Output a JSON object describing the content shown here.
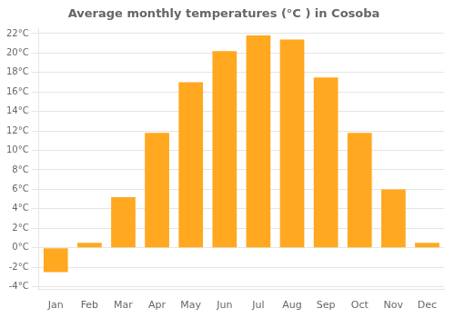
{
  "chart_data": {
    "type": "bar",
    "title": "Average monthly temperatures (°C ) in Cosoba",
    "categories": [
      "Jan",
      "Feb",
      "Mar",
      "Apr",
      "May",
      "Jun",
      "Jul",
      "Aug",
      "Sep",
      "Oct",
      "Nov",
      "Dec"
    ],
    "values": [
      -2.5,
      0.5,
      5.2,
      11.8,
      17.0,
      20.2,
      21.8,
      21.4,
      17.5,
      11.8,
      6.0,
      0.5
    ],
    "color": "#FFA820",
    "ylim": [
      -4.3,
      22.5
    ],
    "yticks": [
      {
        "value": -4,
        "label": "-4°C"
      },
      {
        "value": -2,
        "label": "-2°C"
      },
      {
        "value": 0,
        "label": "0°C"
      },
      {
        "value": 2,
        "label": "2°C"
      },
      {
        "value": 4,
        "label": "4°C"
      },
      {
        "value": 6,
        "label": "6°C"
      },
      {
        "value": 8,
        "label": "8°C"
      },
      {
        "value": 10,
        "label": "10°C"
      },
      {
        "value": 12,
        "label": "12°C"
      },
      {
        "value": 14,
        "label": "14°C"
      },
      {
        "value": 16,
        "label": "16°C"
      },
      {
        "value": 18,
        "label": "18°C"
      },
      {
        "value": 20,
        "label": "20°C"
      },
      {
        "value": 22,
        "label": "22°C"
      }
    ],
    "grid": true
  }
}
